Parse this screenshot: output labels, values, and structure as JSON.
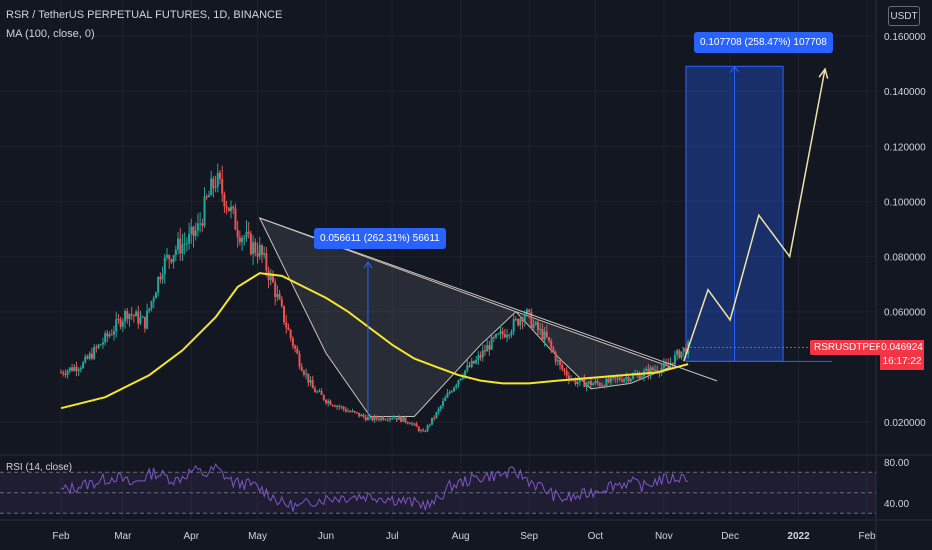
{
  "header": {
    "title": "RSR / TetherUS PERPETUAL FUTURES, 1D, BINANCE",
    "indicator": "MA (100, close, 0)",
    "rsi_label": "RSI (14, close)",
    "currency_button": "USDT"
  },
  "callouts": {
    "first": "0.056611 (262.31%) 56611",
    "second": "0.107708 (258.47%) 107708"
  },
  "price_badge": {
    "ticker": "RSRUSDTPERP",
    "price": "0.046924",
    "countdown": "16:17:22"
  },
  "colors": {
    "background": "#131722",
    "up_candle": "#26a69a",
    "down_candle": "#ef5350",
    "ma_line": "#f5e52d",
    "rsi_line": "#7e57c2",
    "accent": "#2962ff",
    "badge": "#f23645"
  },
  "chart_data": {
    "type": "candlestick",
    "price_axis": {
      "ticks": [
        "0.160000",
        "0.140000",
        "0.120000",
        "0.100000",
        "0.080000",
        "0.060000",
        "0.020000"
      ],
      "tick_values": [
        0.16,
        0.14,
        0.12,
        0.1,
        0.08,
        0.06,
        0.02
      ],
      "range": [
        0.012,
        0.17
      ]
    },
    "rsi_axis": {
      "ticks": [
        "80.00",
        "40.00"
      ],
      "tick_values": [
        80,
        40
      ],
      "range": [
        25,
        85
      ]
    },
    "time_axis": {
      "labels": [
        "Feb",
        "Mar",
        "Apr",
        "May",
        "Jun",
        "Jul",
        "Aug",
        "Sep",
        "Oct",
        "Nov",
        "Dec",
        "2022",
        "Feb"
      ],
      "bold": [
        false,
        false,
        false,
        false,
        false,
        false,
        false,
        false,
        false,
        false,
        false,
        true,
        false
      ],
      "positions": [
        0,
        28,
        59,
        89,
        120,
        150,
        181,
        212,
        242,
        273,
        303,
        334,
        365
      ]
    },
    "price_path": [
      [
        0,
        0.038
      ],
      [
        10,
        0.041
      ],
      [
        22,
        0.052
      ],
      [
        30,
        0.06
      ],
      [
        38,
        0.056
      ],
      [
        46,
        0.077
      ],
      [
        52,
        0.083
      ],
      [
        58,
        0.086
      ],
      [
        62,
        0.09
      ],
      [
        66,
        0.1
      ],
      [
        70,
        0.108
      ],
      [
        74,
        0.102
      ],
      [
        80,
        0.09
      ],
      [
        86,
        0.084
      ],
      [
        90,
        0.082
      ],
      [
        96,
        0.07
      ],
      [
        102,
        0.055
      ],
      [
        108,
        0.042
      ],
      [
        114,
        0.032
      ],
      [
        120,
        0.028
      ],
      [
        130,
        0.024
      ],
      [
        140,
        0.021
      ],
      [
        150,
        0.022
      ],
      [
        158,
        0.02
      ],
      [
        164,
        0.016
      ],
      [
        170,
        0.023
      ],
      [
        176,
        0.031
      ],
      [
        182,
        0.038
      ],
      [
        188,
        0.042
      ],
      [
        194,
        0.048
      ],
      [
        200,
        0.052
      ],
      [
        206,
        0.056
      ],
      [
        210,
        0.06
      ],
      [
        214,
        0.055
      ],
      [
        220,
        0.05
      ],
      [
        226,
        0.04
      ],
      [
        232,
        0.035
      ],
      [
        238,
        0.034
      ],
      [
        246,
        0.034
      ],
      [
        254,
        0.036
      ],
      [
        262,
        0.037
      ],
      [
        268,
        0.039
      ],
      [
        274,
        0.04
      ],
      [
        280,
        0.045
      ],
      [
        284,
        0.047
      ]
    ],
    "ma_path": [
      [
        0,
        0.025
      ],
      [
        20,
        0.029
      ],
      [
        40,
        0.037
      ],
      [
        55,
        0.046
      ],
      [
        70,
        0.058
      ],
      [
        80,
        0.069
      ],
      [
        90,
        0.074
      ],
      [
        100,
        0.073
      ],
      [
        110,
        0.069
      ],
      [
        120,
        0.065
      ],
      [
        130,
        0.06
      ],
      [
        140,
        0.054
      ],
      [
        150,
        0.048
      ],
      [
        160,
        0.043
      ],
      [
        170,
        0.04
      ],
      [
        180,
        0.037
      ],
      [
        190,
        0.035
      ],
      [
        200,
        0.034
      ],
      [
        212,
        0.034
      ],
      [
        225,
        0.035
      ],
      [
        240,
        0.036
      ],
      [
        255,
        0.037
      ],
      [
        270,
        0.038
      ],
      [
        284,
        0.041
      ]
    ],
    "rsi_path": [
      [
        0,
        52
      ],
      [
        15,
        60
      ],
      [
        25,
        66
      ],
      [
        32,
        58
      ],
      [
        42,
        70
      ],
      [
        52,
        62
      ],
      [
        60,
        72
      ],
      [
        66,
        68
      ],
      [
        70,
        74
      ],
      [
        78,
        60
      ],
      [
        86,
        58
      ],
      [
        92,
        52
      ],
      [
        100,
        40
      ],
      [
        108,
        36
      ],
      [
        114,
        42
      ],
      [
        122,
        45
      ],
      [
        130,
        46
      ],
      [
        140,
        47
      ],
      [
        150,
        44
      ],
      [
        160,
        40
      ],
      [
        168,
        38
      ],
      [
        176,
        56
      ],
      [
        184,
        62
      ],
      [
        192,
        66
      ],
      [
        200,
        68
      ],
      [
        206,
        70
      ],
      [
        212,
        62
      ],
      [
        220,
        52
      ],
      [
        226,
        44
      ],
      [
        234,
        46
      ],
      [
        242,
        52
      ],
      [
        250,
        58
      ],
      [
        258,
        60
      ],
      [
        264,
        56
      ],
      [
        270,
        62
      ],
      [
        278,
        64
      ],
      [
        284,
        66
      ]
    ],
    "resistance_line": [
      [
        90,
        0.094
      ],
      [
        288,
        0.04
      ]
    ],
    "cup_left": [
      [
        90,
        0.094
      ],
      [
        120,
        0.045
      ],
      [
        140,
        0.022
      ],
      [
        160,
        0.022
      ],
      [
        190,
        0.048
      ],
      [
        206,
        0.06
      ]
    ],
    "cup_right": [
      [
        206,
        0.06
      ],
      [
        222,
        0.046
      ],
      [
        240,
        0.032
      ],
      [
        258,
        0.034
      ],
      [
        276,
        0.04
      ]
    ],
    "measure_1": {
      "x": 139,
      "from": 0.022,
      "to": 0.078
    },
    "projection_box": {
      "x_from": 283,
      "x_to": 327,
      "from": 0.042,
      "to": 0.149
    },
    "projection_path": [
      [
        282,
        0.042
      ],
      [
        293,
        0.068
      ],
      [
        303,
        0.057
      ],
      [
        316,
        0.095
      ],
      [
        330,
        0.08
      ],
      [
        346,
        0.148
      ]
    ]
  }
}
